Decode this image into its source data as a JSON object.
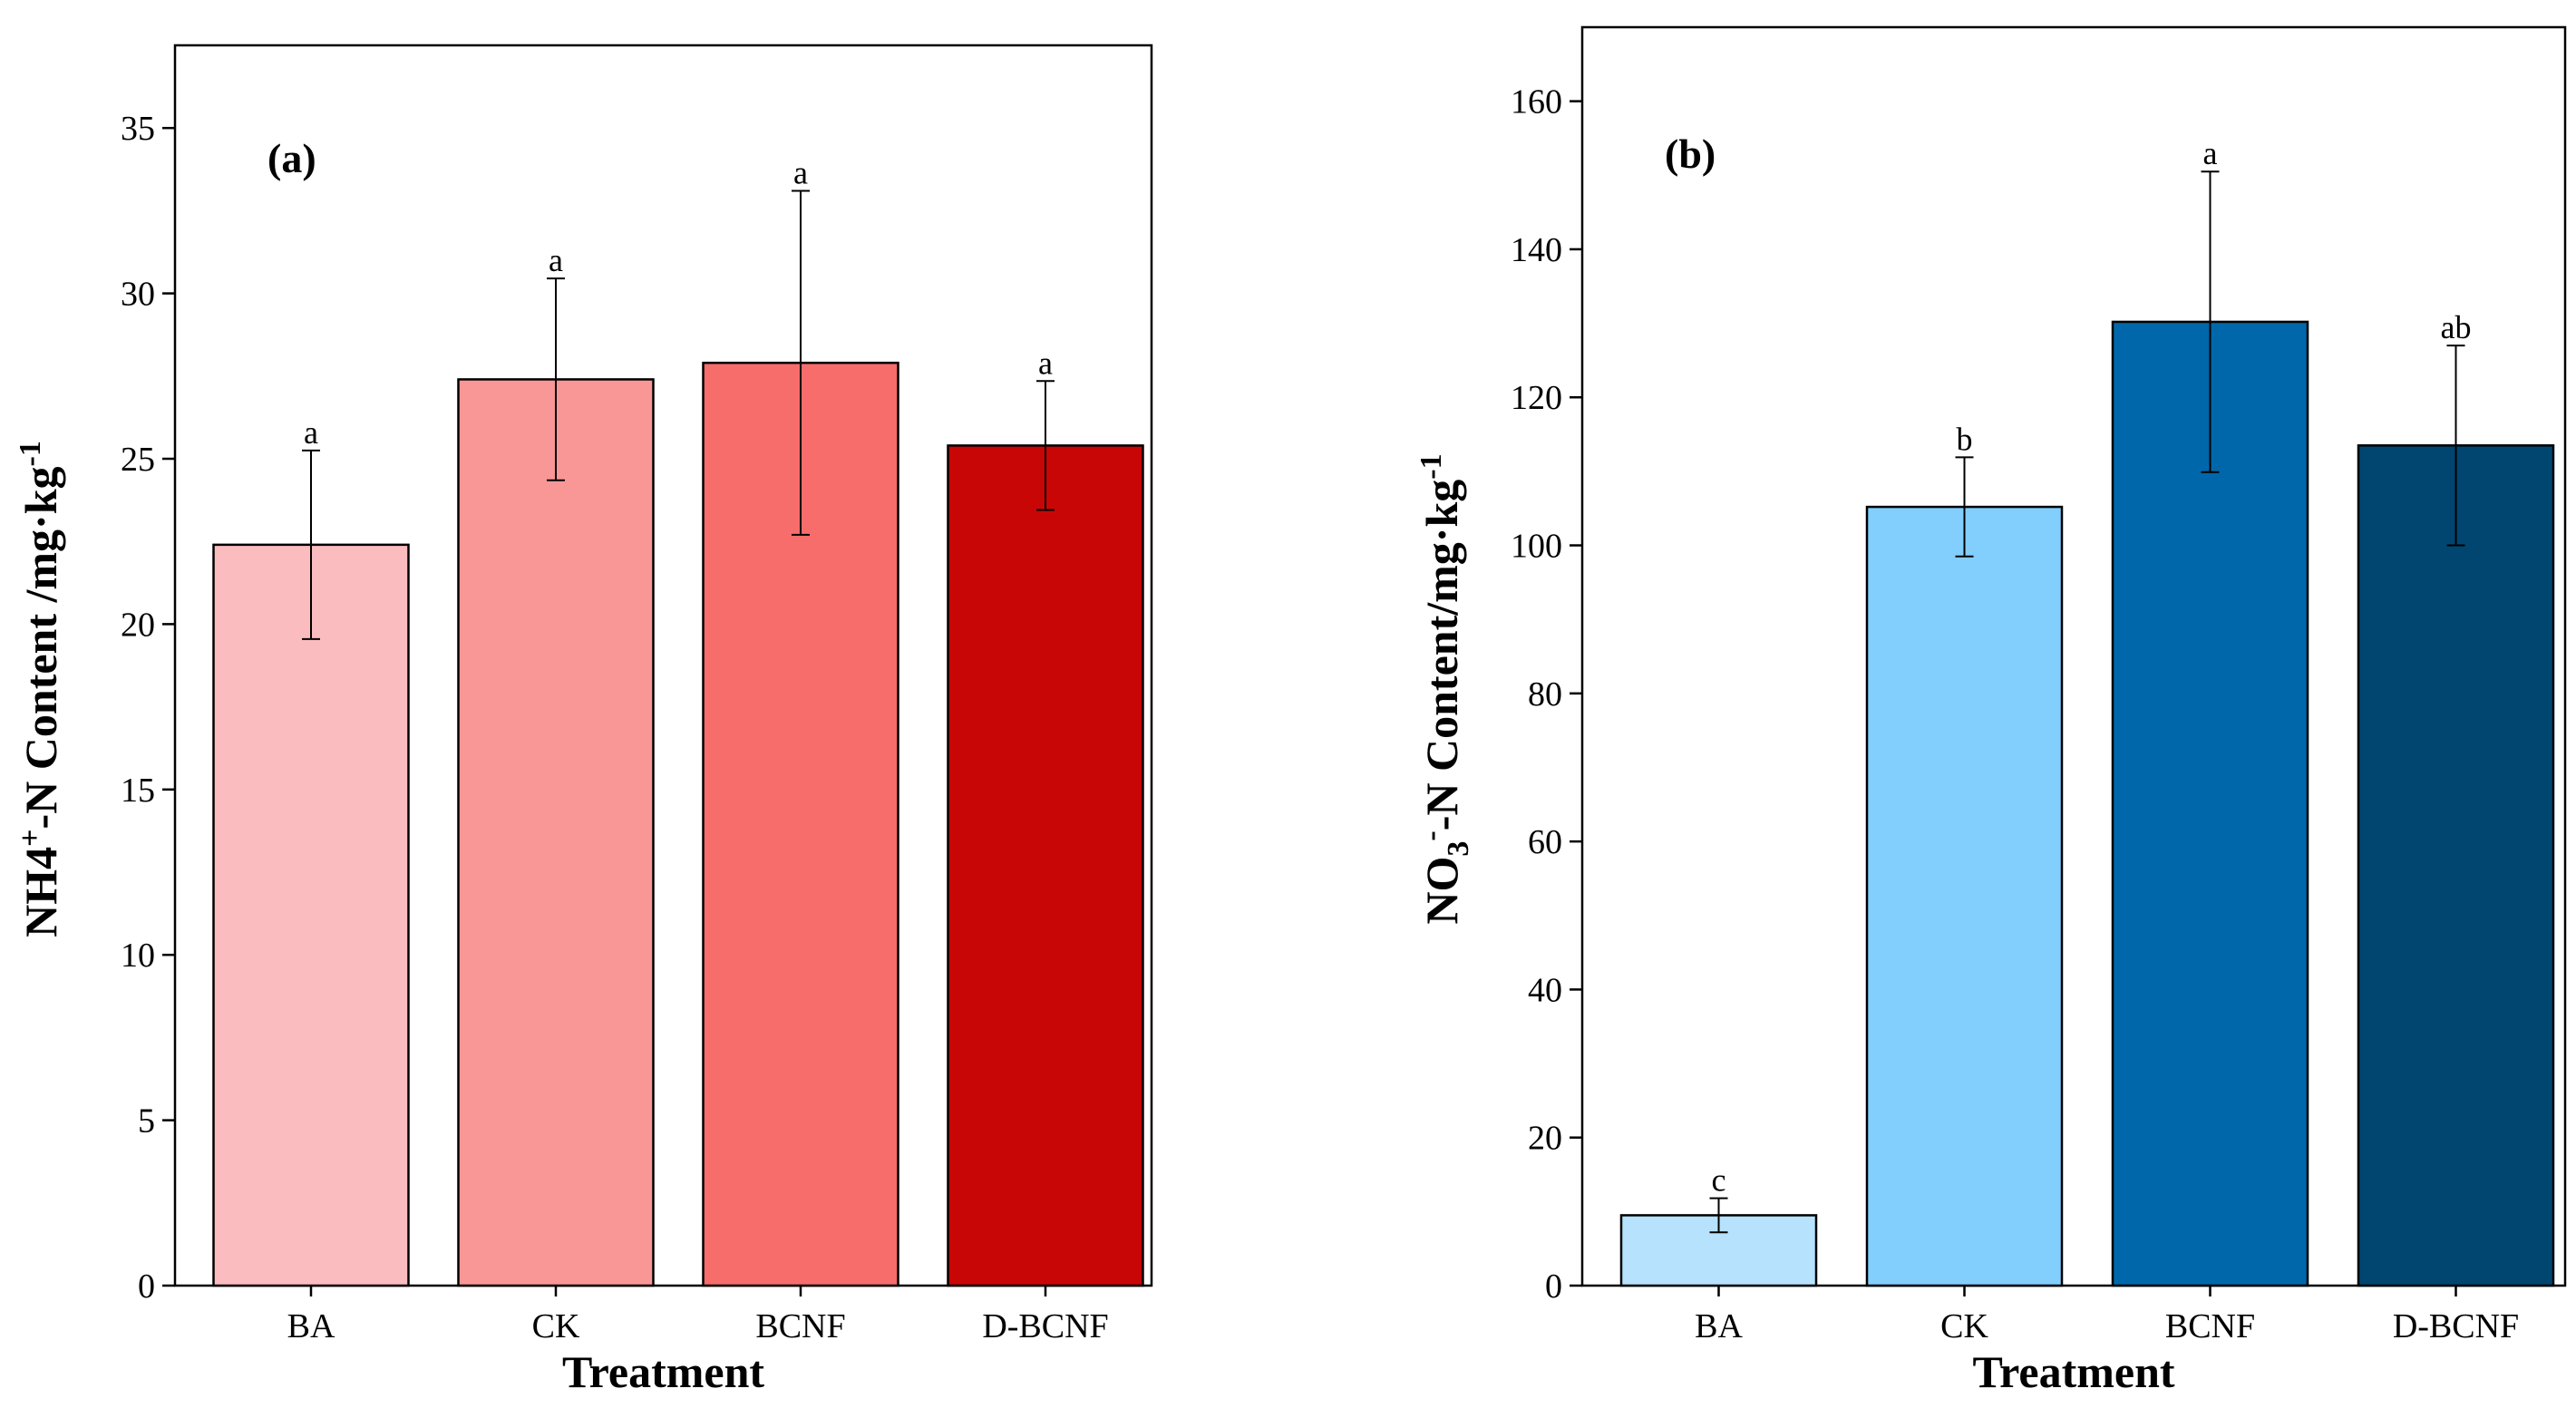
{
  "figure": {
    "xlabel": "Treatment"
  },
  "chart_data": [
    {
      "type": "bar",
      "panel": "(a)",
      "title": "",
      "xlabel": "Treatment",
      "ylabel": "NH4+-N Content /mg·kg-1",
      "ylabel_parts": {
        "main": "NH4",
        "sup1": "+",
        "mid": "-N Content /mg·kg",
        "sup2": "-1"
      },
      "categories": [
        "BA",
        "CK",
        "BCNF",
        "D-BCNF"
      ],
      "values": [
        22.4,
        27.4,
        27.9,
        25.4
      ],
      "errors": [
        2.85,
        3.05,
        5.2,
        1.95
      ],
      "significance": [
        "a",
        "a",
        "a",
        "a"
      ],
      "colors": [
        "#fbbcbf",
        "#f99696",
        "#f76d6b",
        "#c90606"
      ],
      "ylim": [
        0,
        37.5
      ],
      "yticks": [
        0,
        5,
        10,
        15,
        20,
        25,
        30,
        35
      ],
      "grid": false
    },
    {
      "type": "bar",
      "panel": "(b)",
      "title": "",
      "xlabel": "Treatment",
      "ylabel": "NO3--N Content/mg·kg-1",
      "ylabel_parts": {
        "main": "NO",
        "sub": "3",
        "sup1": "-",
        "mid": "-N Content/mg·kg",
        "sup2": "-1"
      },
      "categories": [
        "BA",
        "CK",
        "BCNF",
        "D-BCNF"
      ],
      "values": [
        9.5,
        105.2,
        130.2,
        113.5
      ],
      "errors": [
        2.3,
        6.7,
        20.3,
        13.5
      ],
      "significance": [
        "c",
        "b",
        "a",
        "ab"
      ],
      "colors": [
        "#b6e2fd",
        "#82cefc",
        "#0068aa",
        "#004670"
      ],
      "ylim": [
        0,
        170
      ],
      "yticks": [
        0,
        20,
        40,
        60,
        80,
        100,
        120,
        140,
        160
      ],
      "grid": false
    }
  ]
}
